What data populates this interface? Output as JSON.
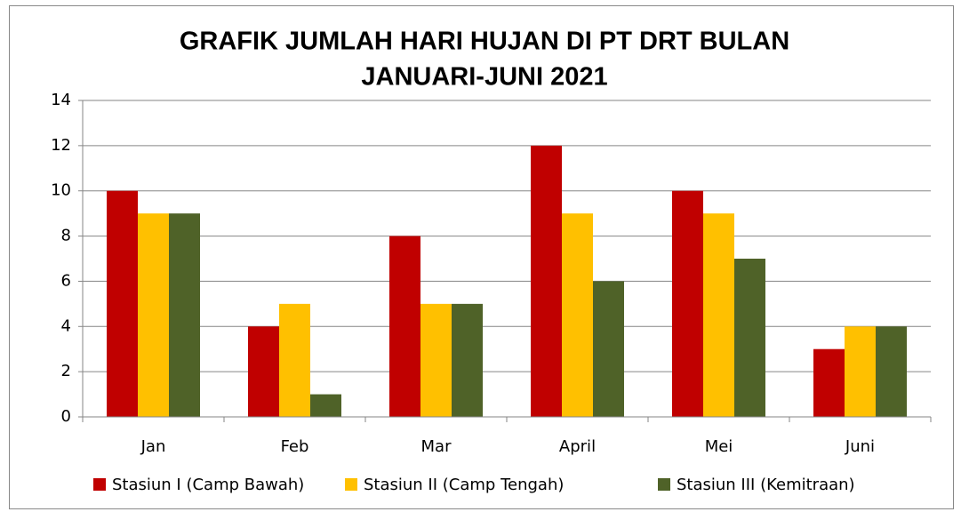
{
  "chart_data": {
    "type": "bar",
    "title": [
      "GRAFIK JUMLAH HARI HUJAN DI PT DRT BULAN",
      "JANUARI-JUNI 2021"
    ],
    "categories": [
      "Jan",
      "Feb",
      "Mar",
      "April",
      "Mei",
      "Juni"
    ],
    "series": [
      {
        "name": "Stasiun I (Camp Bawah)",
        "color": "#c00000",
        "values": [
          10,
          4,
          8,
          12,
          10,
          3
        ]
      },
      {
        "name": "Stasiun II (Camp Tengah)",
        "color": "#ffc000",
        "values": [
          9,
          5,
          5,
          9,
          9,
          4
        ]
      },
      {
        "name": "Stasiun III (Kemitraan)",
        "color": "#4f6228",
        "values": [
          9,
          1,
          5,
          6,
          7,
          4
        ]
      }
    ],
    "ylim": [
      0,
      14
    ],
    "yticks": [
      0,
      2,
      4,
      6,
      8,
      10,
      12,
      14
    ],
    "grid": true,
    "legend": "bottom"
  }
}
